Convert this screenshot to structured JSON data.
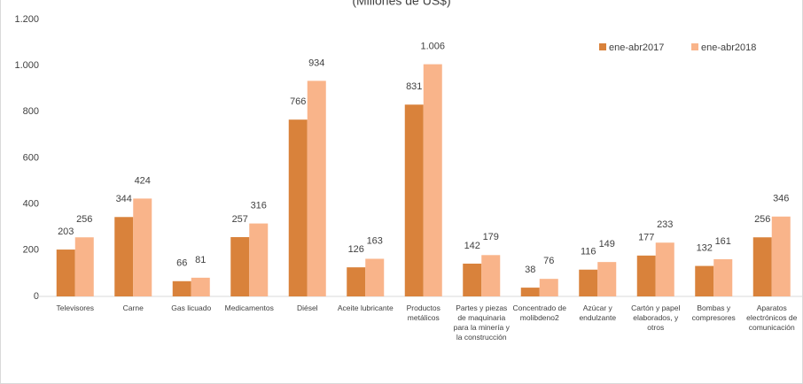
{
  "chart_data": {
    "type": "bar",
    "title": "(Millones de US$)",
    "categories": [
      "Televisores",
      "Carne",
      "Gas licuado",
      "Medicamentos",
      "Diésel",
      "Aceite lubricante",
      "Productos metálicos",
      "Partes y piezas de maquinaria para la minería y la construcción",
      "Concentrado de molibdeno2",
      "Azúcar y endulzante",
      "Cartón y papel elaborados, y otros",
      "Bombas y compresores",
      "Aparatos electrónicos de comunicación"
    ],
    "series": [
      {
        "name": "ene-abr2017",
        "color": "#d9823b",
        "values": [
          203,
          344,
          66,
          257,
          766,
          126,
          831,
          142,
          38,
          116,
          177,
          132,
          256
        ]
      },
      {
        "name": "ene-abr2018",
        "color": "#f9b48a",
        "values": [
          256,
          424,
          81,
          316,
          934,
          163,
          1006,
          179,
          76,
          149,
          233,
          161,
          346
        ],
        "value_labels": [
          "256",
          "424",
          "81",
          "316",
          "934",
          "163",
          "1.006",
          "179",
          "76",
          "149",
          "233",
          "161",
          "346"
        ]
      }
    ],
    "ylim": [
      0,
      1200
    ],
    "yticks": [
      0,
      200,
      400,
      600,
      800,
      {
        "value": 1000,
        "label": "1.000"
      },
      {
        "value": 1200,
        "label": "1.200"
      }
    ],
    "legend": "top-right"
  }
}
